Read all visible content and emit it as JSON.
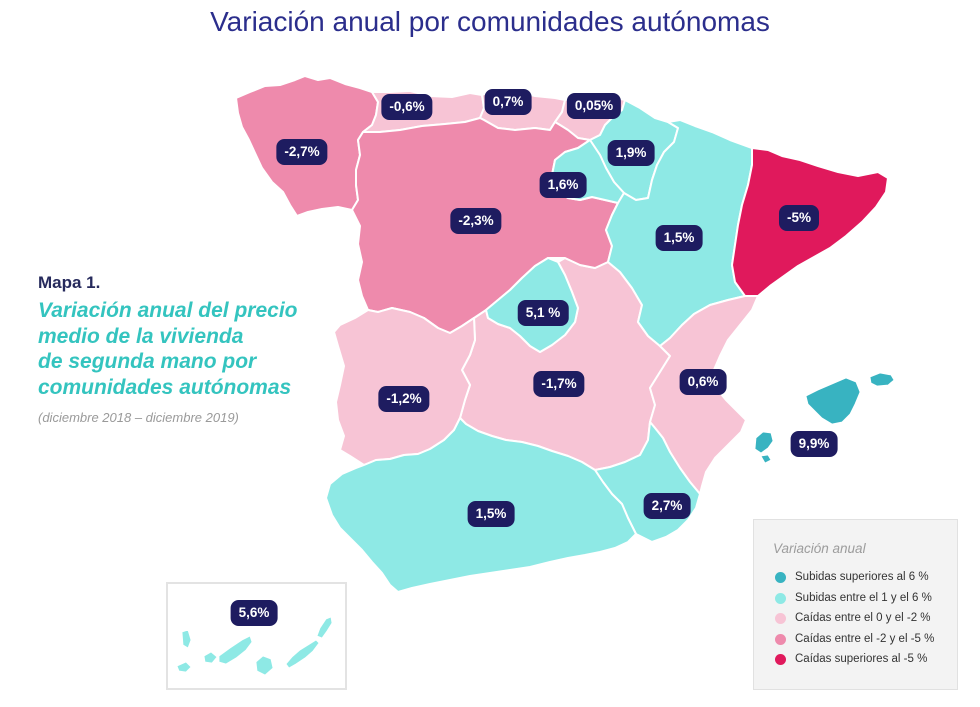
{
  "title": "Variación anual por comunidades autónomas",
  "caption": {
    "label": "Mapa 1.",
    "lines": [
      "Variación anual del precio",
      "medio de la vivienda",
      "de segunda mano por",
      "comunidades autónomas"
    ],
    "period": "(diciembre 2018 – diciembre 2019)"
  },
  "colors": {
    "title": "#2b2e8c",
    "caption": "#34c4bf",
    "label_background": "#1e1c60"
  },
  "legend": {
    "title": "Variación anual",
    "items": [
      {
        "label": "Subidas superiores al 6 %",
        "color": "#38b3c1"
      },
      {
        "label": "Subidas entre el 1 y el 6 %",
        "color": "#8ee9e5"
      },
      {
        "label": "Caídas entre el 0 y el -2 %",
        "color": "#f7c4d5"
      },
      {
        "label": "Caídas entre el -2 y el -5 %",
        "color": "#ee8aac"
      },
      {
        "label": "Caídas superiores al -5 %",
        "color": "#e0195c"
      }
    ]
  },
  "regions": {
    "galicia": {
      "value": "-2,7%",
      "category": 3
    },
    "asturias": {
      "value": "-0,6%",
      "category": 2
    },
    "cantabria": {
      "value": "0,7%",
      "category": 2
    },
    "pais_vasco": {
      "value": "0,05%",
      "category": 2
    },
    "navarra": {
      "value": "1,9%",
      "category": 1
    },
    "la_rioja": {
      "value": "1,6%",
      "category": 1
    },
    "castilla_y_leon": {
      "value": "-2,3%",
      "category": 3
    },
    "aragon": {
      "value": "1,5%",
      "category": 1
    },
    "cataluna": {
      "value": "-5%",
      "category": 4
    },
    "madrid": {
      "value": "5,1 %",
      "category": 1
    },
    "extremadura": {
      "value": "-1,2%",
      "category": 2
    },
    "castilla_la_mancha": {
      "value": "-1,7%",
      "category": 2
    },
    "comunidad_valenciana": {
      "value": "0,6%",
      "category": 2
    },
    "baleares": {
      "value": "9,9%",
      "category": 0
    },
    "murcia": {
      "value": "2,7%",
      "category": 1
    },
    "andalucia": {
      "value": "1,5%",
      "category": 1
    },
    "canarias": {
      "value": "5,6%",
      "category": 1
    }
  }
}
